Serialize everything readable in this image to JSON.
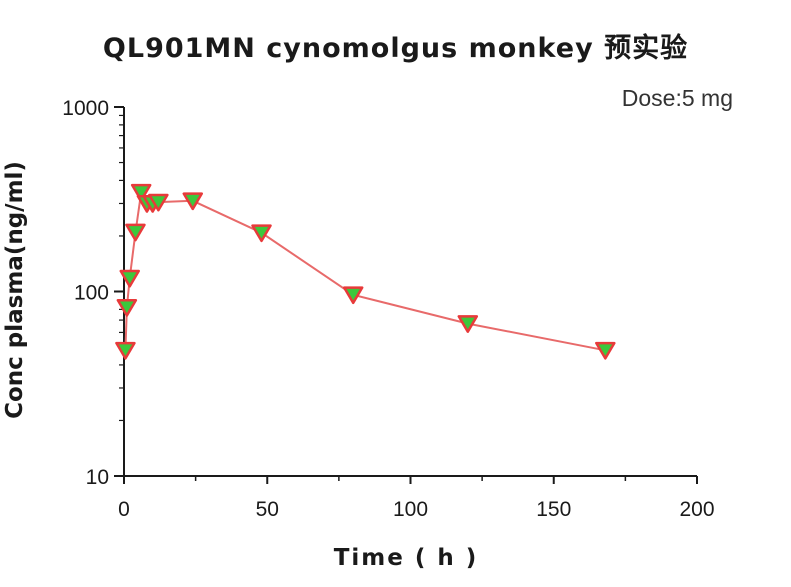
{
  "chart_data": {
    "type": "scatter",
    "title": "QL901MN  cynomolgus monkey 预实验",
    "annotation": "Dose:5 mg",
    "xlabel": "Time ( h )",
    "ylabel": "Conc plasma(ng/ml)",
    "xlim": [
      0,
      200
    ],
    "ylim": [
      10,
      1000
    ],
    "yscale": "log",
    "grid": false,
    "x_ticks": [
      "0",
      "50",
      "100",
      "150",
      "200"
    ],
    "y_ticks": [
      "10",
      "100",
      "1000"
    ],
    "series": [
      {
        "x": [
          0.5,
          1,
          2,
          4,
          6,
          8,
          10,
          12,
          24,
          48,
          80,
          120,
          168
        ],
        "y": [
          48,
          82,
          118,
          210,
          345,
          300,
          300,
          305,
          310,
          208,
          96,
          67,
          48
        ],
        "line_color": "#e86a6a",
        "marker": "triangle-down",
        "marker_fill": "#3cc83c",
        "marker_stroke": "#e83a3a"
      }
    ]
  }
}
